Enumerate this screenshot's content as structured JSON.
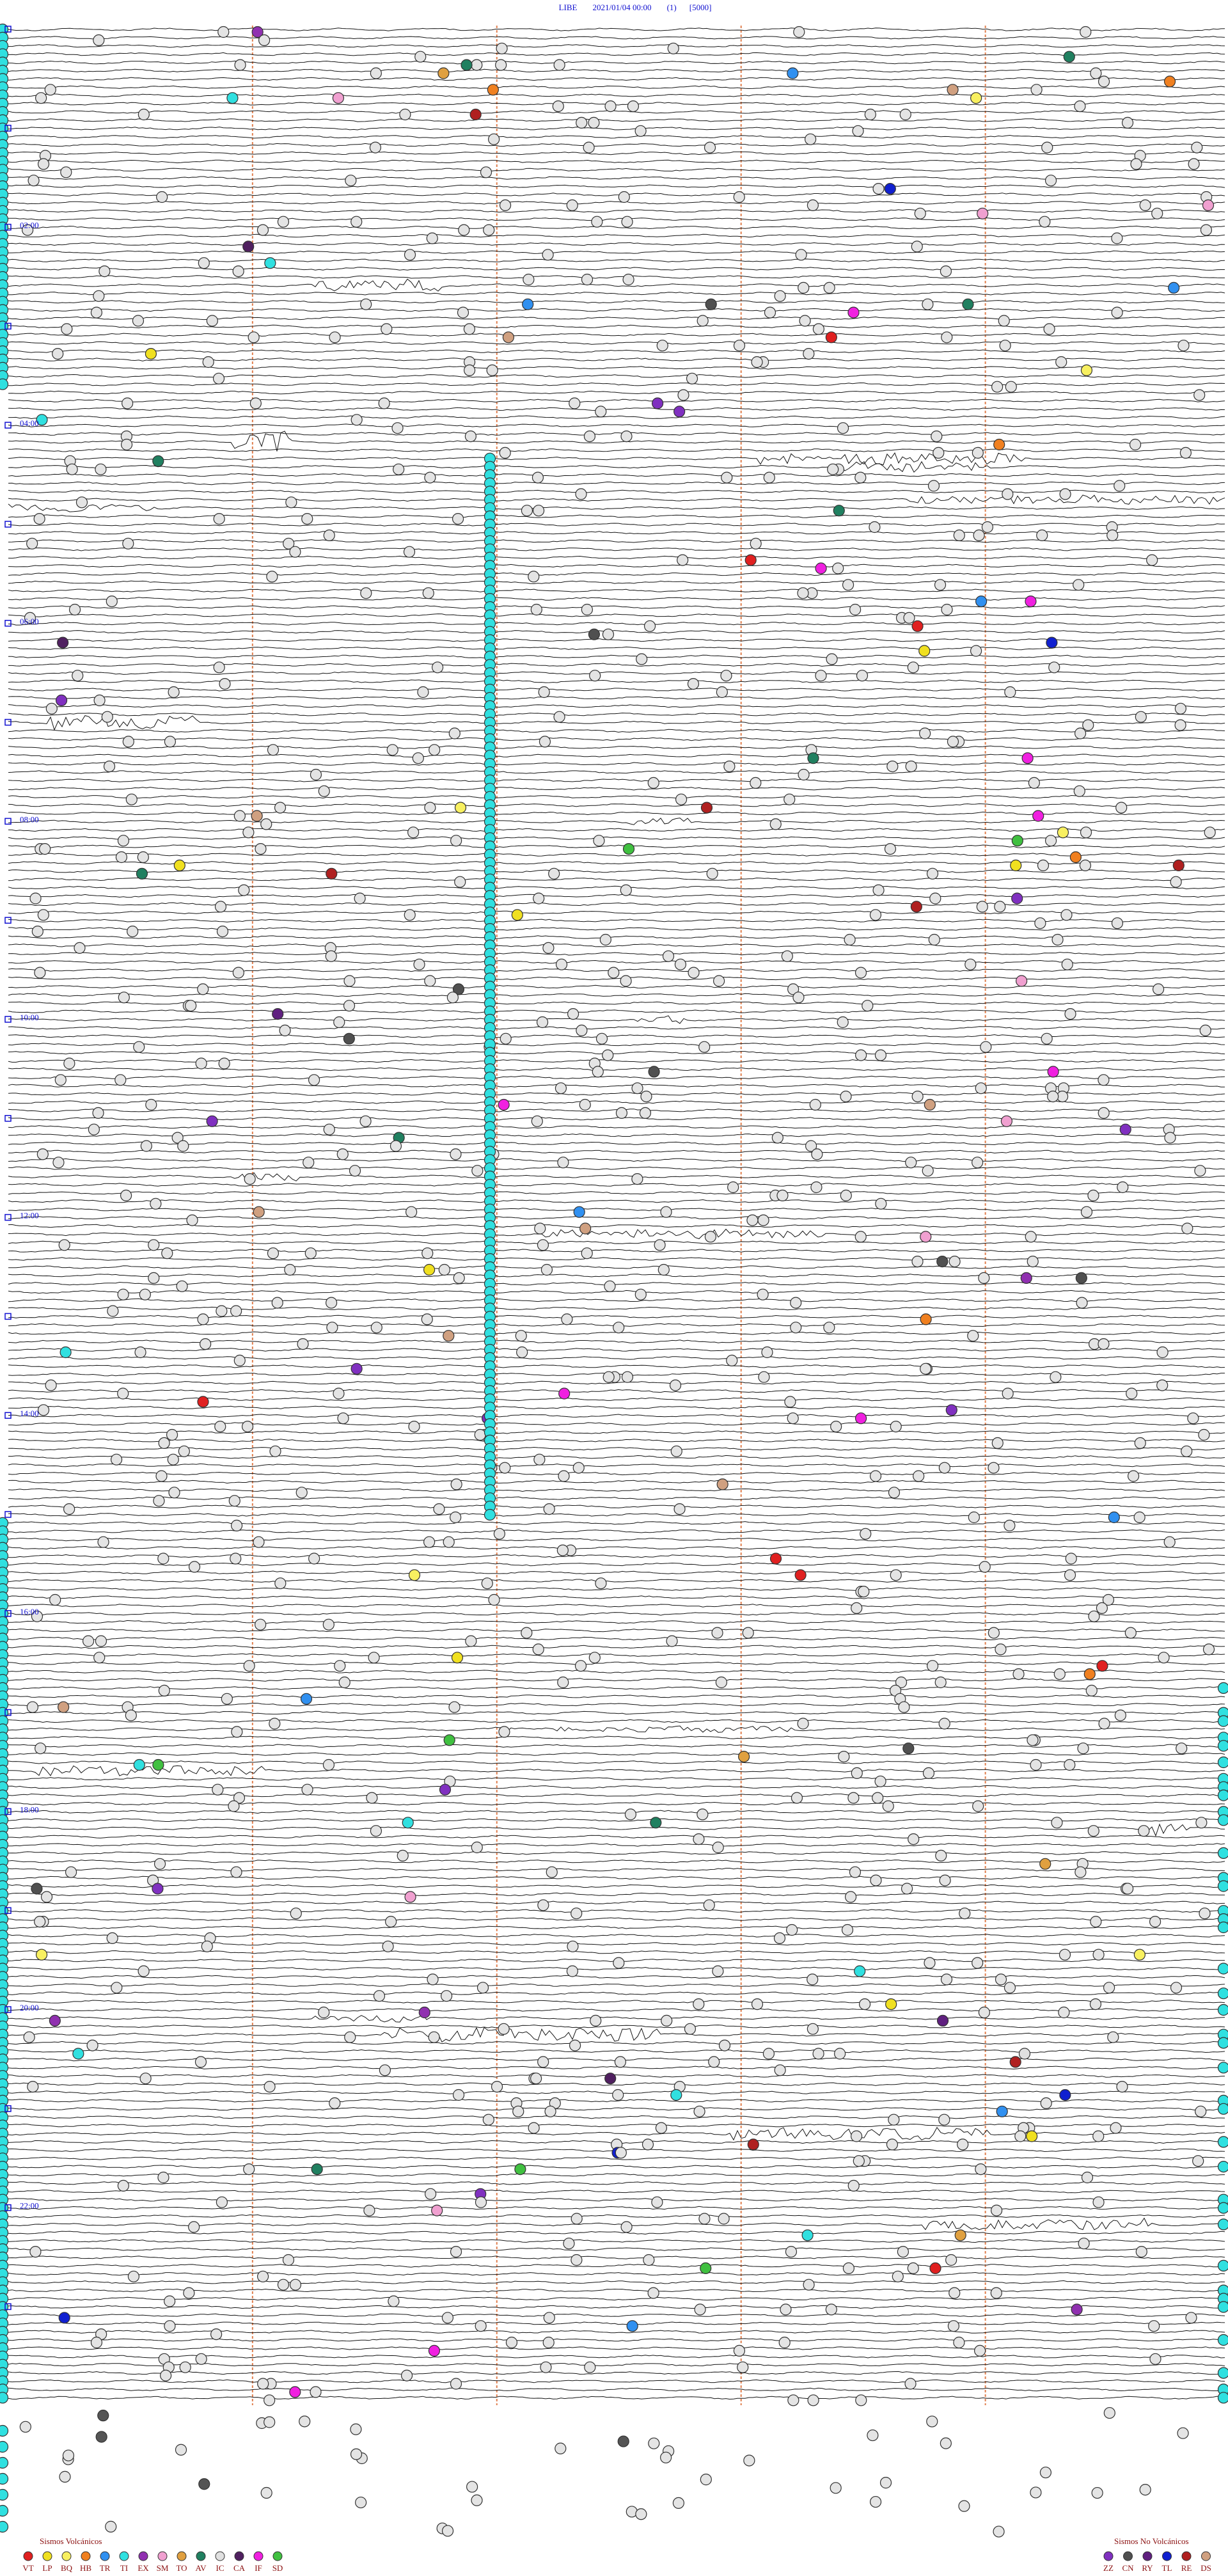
{
  "header": {
    "station": "LIBE",
    "datetime": "2021/01/04 00:00",
    "channel": "(1)",
    "scale": "[5000]"
  },
  "time_labels": [
    "02:00",
    "04:00",
    "06:00",
    "08:00",
    "10:00",
    "12:00",
    "14:00",
    "16:00",
    "18:00",
    "20:00",
    "22:00"
  ],
  "legend_volcanic": {
    "title": "Sismos Volcánicos",
    "items": [
      {
        "code": "VT",
        "color": "#e02020"
      },
      {
        "code": "LP",
        "color": "#f0e020"
      },
      {
        "code": "BQ",
        "color": "#f8f060"
      },
      {
        "code": "HB",
        "color": "#f08020"
      },
      {
        "code": "TR",
        "color": "#3090f0"
      },
      {
        "code": "TI",
        "color": "#30e0e0"
      },
      {
        "code": "EX",
        "color": "#9030b0"
      },
      {
        "code": "SM",
        "color": "#f0a0d0"
      },
      {
        "code": "TO",
        "color": "#e0a040"
      },
      {
        "code": "AV",
        "color": "#208060"
      },
      {
        "code": "IC",
        "color": "#e0e0e0"
      },
      {
        "code": "CA",
        "color": "#502060"
      },
      {
        "code": "IF",
        "color": "#f020e0"
      },
      {
        "code": "SD",
        "color": "#40c040"
      }
    ]
  },
  "legend_non_volcanic": {
    "title": "Sismos No Volcánicos",
    "items": [
      {
        "code": "ZZ",
        "color": "#8030c0"
      },
      {
        "code": "CN",
        "color": "#505050"
      },
      {
        "code": "RY",
        "color": "#602080"
      },
      {
        "code": "TL",
        "color": "#1020d0"
      },
      {
        "code": "RE",
        "color": "#b02020"
      },
      {
        "code": "DS",
        "color": "#d0a080"
      }
    ]
  }
}
